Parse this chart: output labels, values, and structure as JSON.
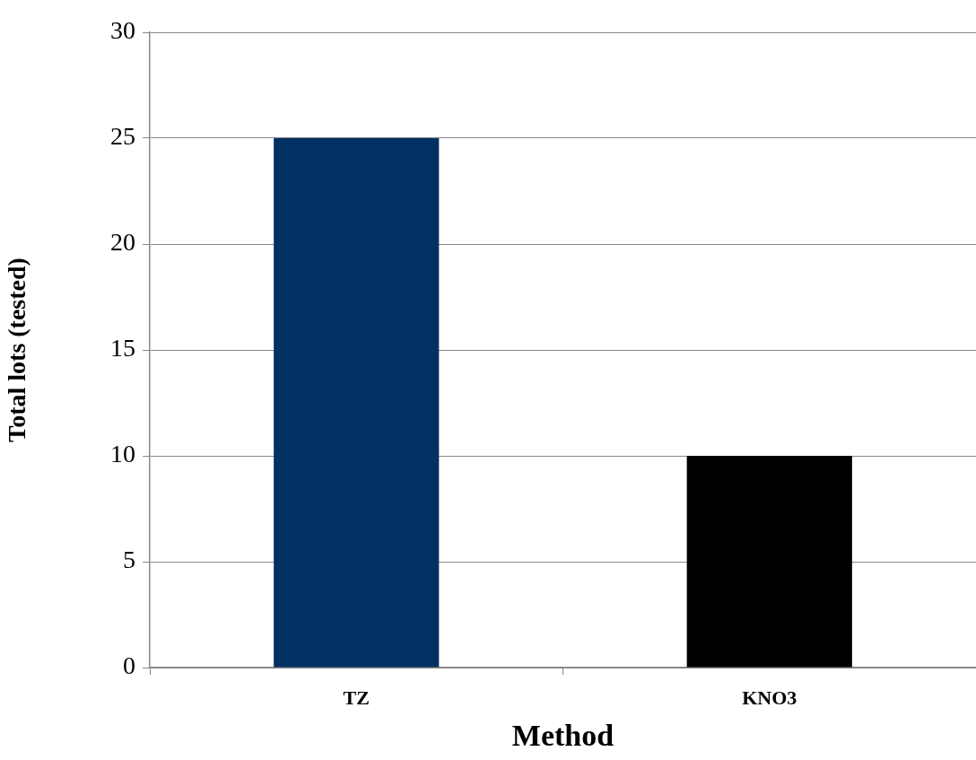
{
  "chart_data": {
    "type": "bar",
    "xlabel": "Method",
    "ylabel": "Total lots (tested)",
    "categories": [
      "TZ",
      "KNO3"
    ],
    "values": [
      25,
      10
    ],
    "colors": [
      "#003162",
      "#000000"
    ],
    "ylim": [
      0,
      30
    ],
    "yticks": [
      0,
      5,
      10,
      15,
      20,
      25,
      30
    ],
    "grid": "y",
    "legend": false
  }
}
